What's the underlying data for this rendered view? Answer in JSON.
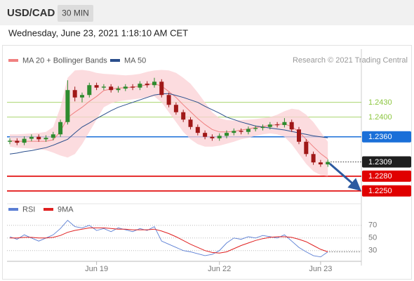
{
  "header": {
    "symbol": "USD/CAD",
    "timeframe": "30 MIN",
    "datetime": "Wednesday, June 23, 2021 1:18:10 AM CET"
  },
  "chart_data": [
    {
      "type": "candlestick",
      "source": "Research © 2021 Trading Central",
      "up_color": "#2e8b2e",
      "down_color": "#a01818",
      "open": [
        1.235,
        1.2352,
        1.2348,
        1.2356,
        1.236,
        1.2355,
        1.2358,
        1.2365,
        1.239,
        1.2455,
        1.244,
        1.2445,
        1.2465,
        1.246,
        1.2462,
        1.2455,
        1.2458,
        1.2462,
        1.246,
        1.2468,
        1.2465,
        1.2472,
        1.2445,
        1.2425,
        1.241,
        1.2395,
        1.238,
        1.2368,
        1.236,
        1.2357,
        1.2362,
        1.2368,
        1.2372,
        1.237,
        1.2376,
        1.2378,
        1.238,
        1.2385,
        1.2384,
        1.239,
        1.2375,
        1.235,
        1.2325,
        1.2308,
        1.2304
      ],
      "high": [
        1.2357,
        1.2357,
        1.2361,
        1.2365,
        1.2365,
        1.2363,
        1.237,
        1.2395,
        1.2475,
        1.2462,
        1.245,
        1.247,
        1.247,
        1.2467,
        1.2467,
        1.2463,
        1.2467,
        1.2467,
        1.2473,
        1.2473,
        1.248,
        1.2477,
        1.245,
        1.243,
        1.2415,
        1.24,
        1.2385,
        1.2373,
        1.2365,
        1.2367,
        1.2373,
        1.2377,
        1.2377,
        1.2381,
        1.2383,
        1.2385,
        1.239,
        1.239,
        1.2398,
        1.2395,
        1.238,
        1.2355,
        1.233,
        1.2313,
        1.2314
      ],
      "low": [
        1.2345,
        1.2343,
        1.2343,
        1.2351,
        1.235,
        1.235,
        1.2353,
        1.236,
        1.2385,
        1.2432,
        1.243,
        1.244,
        1.2455,
        1.2455,
        1.245,
        1.245,
        1.2453,
        1.2455,
        1.2455,
        1.246,
        1.246,
        1.244,
        1.242,
        1.2405,
        1.239,
        1.2375,
        1.2363,
        1.2355,
        1.2352,
        1.2352,
        1.2357,
        1.2363,
        1.2365,
        1.2365,
        1.2371,
        1.2373,
        1.2375,
        1.2379,
        1.2379,
        1.237,
        1.2345,
        1.232,
        1.2303,
        1.2299,
        1.2299
      ],
      "close": [
        1.2352,
        1.2348,
        1.2356,
        1.236,
        1.2355,
        1.2358,
        1.2365,
        1.239,
        1.2455,
        1.244,
        1.2445,
        1.2465,
        1.246,
        1.2462,
        1.2455,
        1.2458,
        1.2462,
        1.246,
        1.2468,
        1.2465,
        1.2472,
        1.2445,
        1.2425,
        1.241,
        1.2395,
        1.238,
        1.2368,
        1.236,
        1.2357,
        1.2362,
        1.2368,
        1.2372,
        1.237,
        1.2376,
        1.2378,
        1.238,
        1.2385,
        1.2384,
        1.239,
        1.2375,
        1.235,
        1.2325,
        1.2308,
        1.2304,
        1.2309
      ],
      "series": [
        {
          "name": "MA 20 + Bollinger Bands",
          "color": "#f08080",
          "band_color": "#fbd0d4",
          "values": [
            1.2352,
            1.2351,
            1.2351,
            1.2351,
            1.2351,
            1.2351,
            1.2354,
            1.2371,
            1.2399,
            1.241,
            1.242,
            1.2432,
            1.2442,
            1.2454,
            1.2457,
            1.2459,
            1.246,
            1.2461,
            1.2463,
            1.2466,
            1.2468,
            1.2463,
            1.2452,
            1.244,
            1.2425,
            1.2411,
            1.2397,
            1.2385,
            1.2375,
            1.237,
            1.237,
            1.2371,
            1.2374,
            1.2376,
            1.2379,
            1.2381,
            1.2383,
            1.2385,
            1.2386,
            1.2381,
            1.237,
            1.2355,
            1.234,
            1.2326,
            1.2315
          ],
          "upper": [
            1.2365,
            1.2365,
            1.2366,
            1.2367,
            1.2368,
            1.237,
            1.238,
            1.242,
            1.248,
            1.2495,
            1.2496,
            1.2494,
            1.249,
            1.2488,
            1.2487,
            1.2486,
            1.2485,
            1.2486,
            1.2488,
            1.2492,
            1.2495,
            1.2496,
            1.2495,
            1.249,
            1.248,
            1.2468,
            1.245,
            1.243,
            1.241,
            1.2398,
            1.2394,
            1.2393,
            1.2394,
            1.2395,
            1.2396,
            1.2398,
            1.24,
            1.2405,
            1.2412,
            1.2417,
            1.2415,
            1.2405,
            1.239,
            1.237,
            1.235
          ],
          "lower": [
            1.234,
            1.2338,
            1.2337,
            1.2336,
            1.2335,
            1.2333,
            1.2328,
            1.2322,
            1.2318,
            1.2325,
            1.2345,
            1.237,
            1.2395,
            1.242,
            1.2428,
            1.2432,
            1.2434,
            1.2436,
            1.2438,
            1.244,
            1.2442,
            1.243,
            1.241,
            1.239,
            1.237,
            1.2355,
            1.2345,
            1.234,
            1.234,
            1.2342,
            1.2346,
            1.235,
            1.2355,
            1.2358,
            1.2362,
            1.2365,
            1.2367,
            1.2365,
            1.236,
            1.2345,
            1.2325,
            1.2305,
            1.229,
            1.2282,
            1.228
          ]
        },
        {
          "name": "MA 50",
          "color": "#2a4e8c",
          "values": [
            1.2325,
            1.2327,
            1.233,
            1.2332,
            1.2335,
            1.2338,
            1.2343,
            1.2349,
            1.2355,
            1.2368,
            1.238,
            1.2388,
            1.2397,
            1.2405,
            1.2413,
            1.242,
            1.2425,
            1.243,
            1.2435,
            1.244,
            1.2445,
            1.2447,
            1.2448,
            1.2444,
            1.244,
            1.2435,
            1.243,
            1.2422,
            1.2415,
            1.2408,
            1.24,
            1.2395,
            1.239,
            1.2386,
            1.2382,
            1.238,
            1.2378,
            1.2376,
            1.2374,
            1.2371,
            1.2368,
            1.2365,
            1.2362,
            1.236,
            1.2358
          ]
        }
      ],
      "ylim": [
        1.2234,
        1.2531
      ],
      "levels": [
        {
          "value": 1.243,
          "label": "1.2430",
          "color": "#8cc63f",
          "box": false
        },
        {
          "value": 1.24,
          "label": "1.2400",
          "color": "#8cc63f",
          "box": false
        },
        {
          "value": 1.236,
          "label": "1.2360",
          "color": "#1a6fd8",
          "box": true
        },
        {
          "value": 1.228,
          "label": "1.2280",
          "color": "#e00000",
          "box": true
        },
        {
          "value": 1.225,
          "label": "1.2250",
          "color": "#e00000",
          "box": true
        }
      ],
      "current_price": {
        "value": 1.2309,
        "label": "1.2309",
        "color": "#1e1e1e"
      }
    },
    {
      "type": "line",
      "categories": [
        null,
        null,
        null,
        null,
        null,
        null,
        null,
        null,
        null,
        null,
        null,
        null,
        "Jun 19",
        null,
        null,
        null,
        null,
        null,
        null,
        null,
        null,
        null,
        null,
        null,
        null,
        null,
        null,
        null,
        null,
        "Jun 22",
        null,
        null,
        null,
        null,
        null,
        null,
        null,
        null,
        null,
        null,
        null,
        null,
        null,
        "Jun 23",
        null
      ],
      "series": [
        {
          "name": "RSI",
          "color": "#5b7fd4",
          "values": [
            52,
            48,
            55,
            50,
            45,
            50,
            55,
            65,
            78,
            68,
            66,
            70,
            62,
            65,
            60,
            66,
            63,
            60,
            65,
            62,
            68,
            45,
            40,
            35,
            30,
            28,
            25,
            22,
            24,
            30,
            42,
            50,
            48,
            52,
            50,
            54,
            52,
            50,
            55,
            45,
            35,
            28,
            22,
            20,
            28
          ]
        },
        {
          "name": "9MA",
          "color": "#e02020",
          "values": [
            50,
            50,
            51,
            51,
            50,
            50,
            51,
            54,
            59,
            62,
            64,
            66,
            66,
            66,
            65,
            64,
            64,
            63,
            63,
            63,
            64,
            61,
            57,
            52,
            46,
            40,
            35,
            30,
            27,
            26,
            28,
            33,
            38,
            42,
            46,
            49,
            51,
            52,
            52,
            51,
            48,
            44,
            38,
            32,
            28
          ]
        }
      ],
      "ylim": [
        13,
        82
      ],
      "yticks": [
        70,
        50,
        30
      ],
      "grid": true
    }
  ]
}
